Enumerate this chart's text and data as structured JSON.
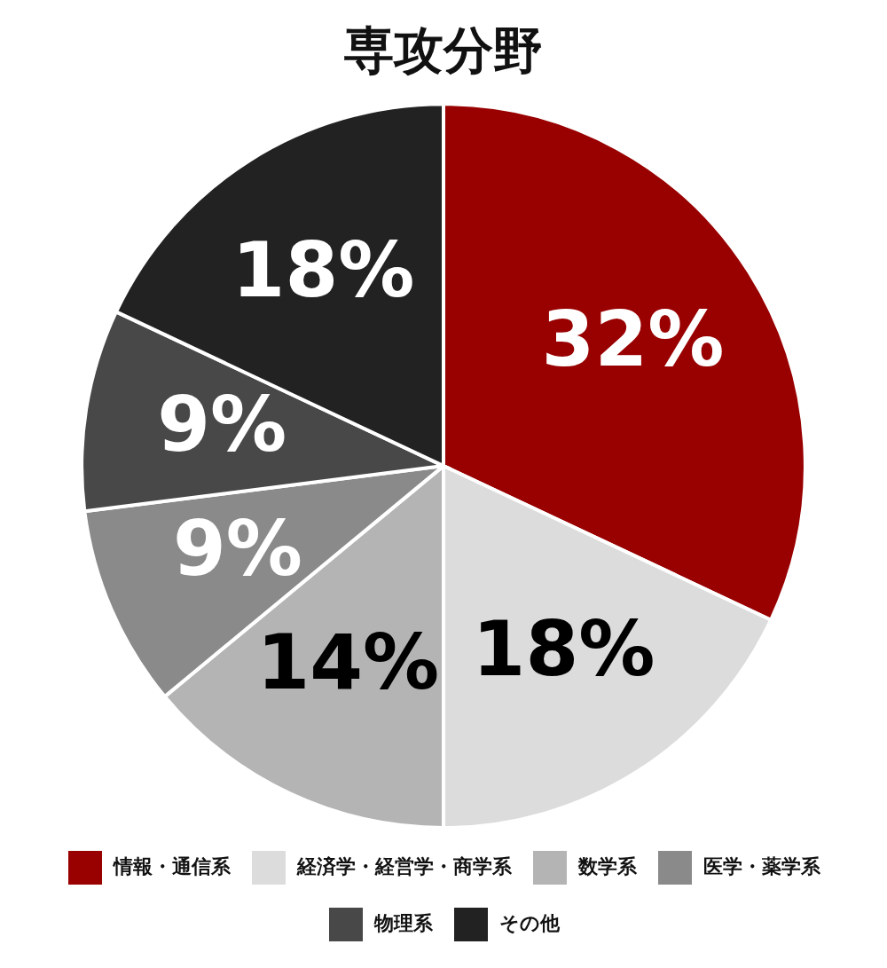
{
  "chart_data": {
    "type": "pie",
    "title": "専攻分野",
    "categories": [
      "情報・通信系",
      "経済学・経営学・商学系",
      "数学系",
      "医学・薬学系",
      "物理系",
      "その他"
    ],
    "values": [
      32,
      18,
      14,
      9,
      9,
      18
    ],
    "colors": [
      "#990000",
      "#dcdcdc",
      "#b4b4b4",
      "#8a8a8a",
      "#484848",
      "#222222"
    ],
    "value_labels": [
      "32%",
      "18%",
      "14%",
      "9%",
      "9%",
      "18%"
    ],
    "legend": "bottom"
  }
}
